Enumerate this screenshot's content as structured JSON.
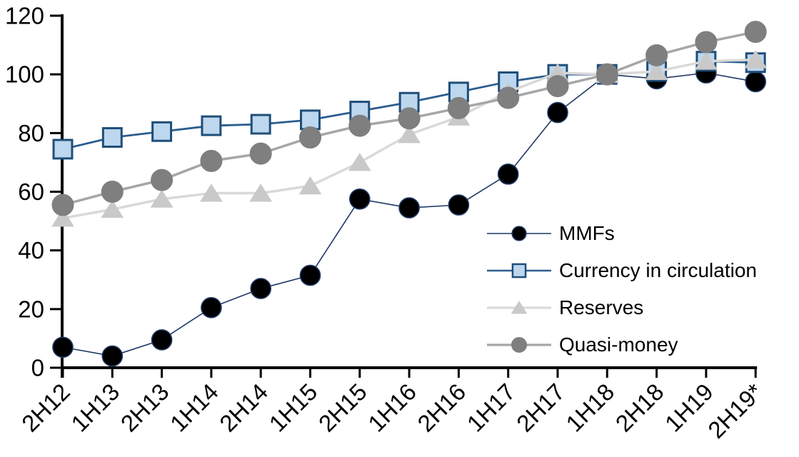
{
  "chart_data": {
    "type": "line",
    "title": "",
    "xlabel": "",
    "ylabel": "",
    "background": "#ffffff",
    "axis_color": "#000000",
    "grid": false,
    "legend_position": "inside-right-middle",
    "categories": [
      "2H12",
      "1H13",
      "2H13",
      "1H14",
      "2H14",
      "1H15",
      "2H15",
      "1H16",
      "2H16",
      "1H17",
      "2H17",
      "1H18",
      "2H18",
      "1H19",
      "2H19*"
    ],
    "y_axis": {
      "min": 0,
      "max": 120,
      "step": 20,
      "tick_labels": [
        "0",
        "20",
        "40",
        "60",
        "80",
        "100",
        "120"
      ]
    },
    "series": [
      {
        "name": "MMFs",
        "marker": "circle",
        "marker_fill": "#000000",
        "marker_stroke": "#1f3864",
        "marker_stroke_width": 1.6,
        "marker_size": 28,
        "line_color": "#1f3864",
        "line_width": 1.6,
        "values": [
          7,
          4,
          9.5,
          20.5,
          27,
          31.5,
          57.5,
          54.5,
          55.5,
          66,
          87,
          100,
          98.5,
          100.5,
          97.5
        ]
      },
      {
        "name": "Currency in circulation",
        "marker": "square",
        "marker_fill": "#bdd7ee",
        "marker_stroke": "#1f4e79",
        "marker_stroke_width": 3,
        "marker_size": 27,
        "line_color": "#2a5d8f",
        "line_width": 2.8,
        "values": [
          74.5,
          78.5,
          80.5,
          82.5,
          83,
          84.5,
          87.5,
          90.5,
          94,
          97.5,
          100,
          100,
          101,
          104.5,
          104
        ]
      },
      {
        "name": "Reserves",
        "marker": "triangle",
        "marker_fill": "#c9c9c9",
        "marker_stroke": "#c9c9c9",
        "marker_stroke_width": 1,
        "marker_size": 28,
        "line_color": "#d9d9d9",
        "line_width": 3.5,
        "values": [
          51,
          54,
          57.5,
          59.5,
          59.5,
          62,
          70,
          79.5,
          85.5,
          94,
          100.5,
          100,
          101,
          104.5,
          105
        ]
      },
      {
        "name": "Quasi-money",
        "marker": "circle",
        "marker_fill": "#7f7f7f",
        "marker_stroke": "#7f7f7f",
        "marker_stroke_width": 1,
        "marker_size": 30,
        "line_color": "#a6a6a6",
        "line_width": 3.5,
        "values": [
          55.5,
          60,
          64,
          70.5,
          73,
          78.5,
          82.5,
          85,
          88.5,
          92,
          96,
          100,
          106.5,
          111,
          114.5
        ]
      }
    ]
  }
}
